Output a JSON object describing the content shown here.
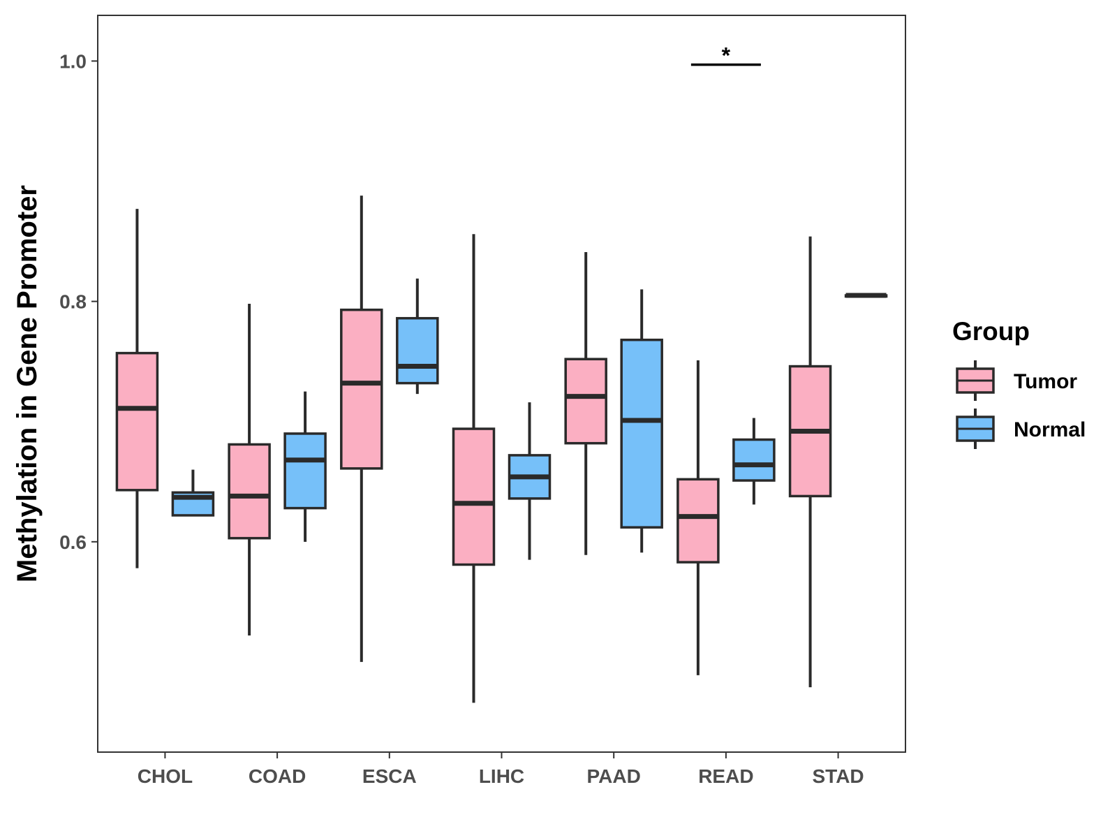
{
  "chart_data": {
    "type": "boxplot",
    "title": "",
    "xlabel": "",
    "ylabel": "Methylation in Gene Promoter",
    "categories": [
      "CHOL",
      "COAD",
      "ESCA",
      "LIHC",
      "PAAD",
      "READ",
      "STAD"
    ],
    "ylim": [
      0.425,
      1.038
    ],
    "yticks": [
      0.6,
      0.8,
      1.0
    ],
    "ytick_labels": [
      "0.6",
      "0.8",
      "1.0"
    ],
    "legend": {
      "title": "Group",
      "position": "right"
    },
    "series": [
      {
        "name": "Tumor",
        "color": "#fbafc2",
        "boxes": [
          {
            "category": "CHOL",
            "min": 0.578,
            "q1": 0.643,
            "median": 0.711,
            "q3": 0.757,
            "max": 0.877
          },
          {
            "category": "COAD",
            "min": 0.522,
            "q1": 0.603,
            "median": 0.638,
            "q3": 0.681,
            "max": 0.798
          },
          {
            "category": "ESCA",
            "min": 0.5,
            "q1": 0.661,
            "median": 0.732,
            "q3": 0.793,
            "max": 0.888
          },
          {
            "category": "LIHC",
            "min": 0.466,
            "q1": 0.581,
            "median": 0.632,
            "q3": 0.694,
            "max": 0.856
          },
          {
            "category": "PAAD",
            "min": 0.589,
            "q1": 0.682,
            "median": 0.721,
            "q3": 0.752,
            "max": 0.841
          },
          {
            "category": "READ",
            "min": 0.489,
            "q1": 0.583,
            "median": 0.621,
            "q3": 0.652,
            "max": 0.751
          },
          {
            "category": "STAD",
            "min": 0.479,
            "q1": 0.638,
            "median": 0.692,
            "q3": 0.746,
            "max": 0.854
          }
        ]
      },
      {
        "name": "Normal",
        "color": "#76c0f9",
        "boxes": [
          {
            "category": "CHOL",
            "min": 0.622,
            "q1": 0.622,
            "median": 0.637,
            "q3": 0.641,
            "max": 0.66
          },
          {
            "category": "COAD",
            "min": 0.6,
            "q1": 0.628,
            "median": 0.668,
            "q3": 0.69,
            "max": 0.725
          },
          {
            "category": "ESCA",
            "min": 0.723,
            "q1": 0.732,
            "median": 0.746,
            "q3": 0.786,
            "max": 0.819
          },
          {
            "category": "LIHC",
            "min": 0.585,
            "q1": 0.636,
            "median": 0.654,
            "q3": 0.672,
            "max": 0.716
          },
          {
            "category": "PAAD",
            "min": 0.591,
            "q1": 0.612,
            "median": 0.701,
            "q3": 0.768,
            "max": 0.81
          },
          {
            "category": "READ",
            "min": 0.631,
            "q1": 0.651,
            "median": 0.664,
            "q3": 0.685,
            "max": 0.703
          },
          {
            "category": "STAD",
            "min": 0.805,
            "q1": 0.805,
            "median": 0.805,
            "q3": 0.805,
            "max": 0.805
          }
        ]
      }
    ],
    "annotations": [
      {
        "category": "READ",
        "text": "*",
        "y": 0.997
      }
    ]
  }
}
